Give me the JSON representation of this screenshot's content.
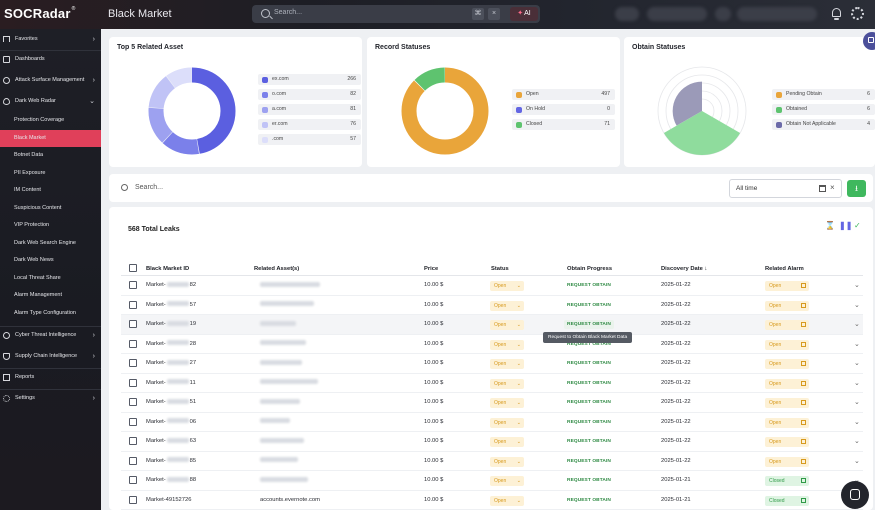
{
  "header": {
    "logo": "SOCRadar",
    "page_title": "Black Market",
    "search_placeholder": "Search...",
    "kbd_icon": "⌘",
    "clear_icon": "×",
    "ai_label": "AI"
  },
  "sidebar": {
    "items": [
      {
        "label": "Favorites",
        "arrow": "›"
      },
      {
        "label": "Dashboards",
        "arrow": ""
      },
      {
        "label": "Attack Surface Management",
        "arrow": "›"
      },
      {
        "label": "Dark Web Radar",
        "arrow": "⌄"
      },
      {
        "label": "Protection Coverage",
        "arrow": ""
      },
      {
        "label": "Black Market",
        "arrow": ""
      },
      {
        "label": "Botnet Data",
        "arrow": ""
      },
      {
        "label": "PII Exposure",
        "arrow": ""
      },
      {
        "label": "IM Content",
        "arrow": ""
      },
      {
        "label": "Suspicious Content",
        "arrow": ""
      },
      {
        "label": "VIP Protection",
        "arrow": ""
      },
      {
        "label": "Dark Web Search Engine",
        "arrow": ""
      },
      {
        "label": "Dark Web News",
        "arrow": ""
      },
      {
        "label": "Local Threat Share",
        "arrow": ""
      },
      {
        "label": "Alarm Management",
        "arrow": ""
      },
      {
        "label": "Alarm Type Configuration",
        "arrow": ""
      },
      {
        "label": "Cyber Threat Intelligence",
        "arrow": "›"
      },
      {
        "label": "Supply Chain Intelligence",
        "arrow": "›"
      },
      {
        "label": "Reports",
        "arrow": ""
      },
      {
        "label": "Settings",
        "arrow": "›"
      }
    ]
  },
  "cards": {
    "top5": {
      "title": "Top 5 Related Asset",
      "items": [
        {
          "label": "ex.com",
          "value": "266",
          "color": "#5b5fe0"
        },
        {
          "label": "o.com",
          "value": "82",
          "color": "#7b80ea"
        },
        {
          "label": "a.com",
          "value": "81",
          "color": "#9da1f0"
        },
        {
          "label": "er.com",
          "value": "76",
          "color": "#c0c3f6"
        },
        {
          "label": ".com",
          "value": "57",
          "color": "#dcdefa"
        }
      ]
    },
    "record": {
      "title": "Record Statuses",
      "items": [
        {
          "label": "Open",
          "value": "497",
          "color": "#e9a53a"
        },
        {
          "label": "On Hold",
          "value": "0",
          "color": "#6366e3"
        },
        {
          "label": "Closed",
          "value": "71",
          "color": "#5ec36f"
        }
      ]
    },
    "obtain": {
      "title": "Obtain Statuses",
      "items": [
        {
          "label": "Pending Obtain",
          "value": "6",
          "color": "#e9a53a"
        },
        {
          "label": "Obtained",
          "value": "6",
          "color": "#5ec36f"
        },
        {
          "label": "Obtain Not Applicable",
          "value": "4",
          "color": "#6b6aa8"
        }
      ]
    }
  },
  "filter": {
    "search_placeholder": "Search...",
    "date_filter": "All time"
  },
  "table": {
    "total": "568 Total Leaks",
    "headers": {
      "id": "Black Market ID",
      "asset": "Related Asset(s)",
      "price": "Price",
      "status": "Status",
      "progress": "Obtain Progress",
      "date": "Discovery Date",
      "alarm": "Related Alarm"
    },
    "sort_indicator": "↓",
    "tooltip": "Request to Obtain Black Market Data",
    "rows": [
      {
        "id_a": "Market-",
        "id_b": "82",
        "price": "10.00 $",
        "status": "Open",
        "progress": "REQUEST OBTAIN",
        "date": "2025-01-22",
        "alarm": "Open",
        "asset": ""
      },
      {
        "id_a": "Market-",
        "id_b": "57",
        "price": "10.00 $",
        "status": "Open",
        "progress": "REQUEST OBTAIN",
        "date": "2025-01-22",
        "alarm": "Open",
        "asset": ""
      },
      {
        "id_a": "Market-",
        "id_b": "19",
        "price": "10.00 $",
        "status": "Open",
        "progress": "REQUEST OBTAIN",
        "date": "2025-01-22",
        "alarm": "Open",
        "asset": ""
      },
      {
        "id_a": "Market-",
        "id_b": "28",
        "price": "10.00 $",
        "status": "Open",
        "progress": "REQUEST OBTAIN",
        "date": "2025-01-22",
        "alarm": "Open",
        "asset": ""
      },
      {
        "id_a": "Market-",
        "id_b": "27",
        "price": "10.00 $",
        "status": "Open",
        "progress": "REQUEST OBTAIN",
        "date": "2025-01-22",
        "alarm": "Open",
        "asset": ""
      },
      {
        "id_a": "Market-",
        "id_b": "11",
        "price": "10.00 $",
        "status": "Open",
        "progress": "REQUEST OBTAIN",
        "date": "2025-01-22",
        "alarm": "Open",
        "asset": ""
      },
      {
        "id_a": "Market-",
        "id_b": "51",
        "price": "10.00 $",
        "status": "Open",
        "progress": "REQUEST OBTAIN",
        "date": "2025-01-22",
        "alarm": "Open",
        "asset": ""
      },
      {
        "id_a": "Market-",
        "id_b": "06",
        "price": "10.00 $",
        "status": "Open",
        "progress": "REQUEST OBTAIN",
        "date": "2025-01-22",
        "alarm": "Open",
        "asset": ""
      },
      {
        "id_a": "Market-",
        "id_b": "63",
        "price": "10.00 $",
        "status": "Open",
        "progress": "REQUEST OBTAIN",
        "date": "2025-01-22",
        "alarm": "Open",
        "asset": ""
      },
      {
        "id_a": "Market-",
        "id_b": "85",
        "price": "10.00 $",
        "status": "Open",
        "progress": "REQUEST OBTAIN",
        "date": "2025-01-22",
        "alarm": "Open",
        "asset": ""
      },
      {
        "id_a": "Market-",
        "id_b": "88",
        "price": "10.00 $",
        "status": "Open",
        "progress": "REQUEST OBTAIN",
        "date": "2025-01-21",
        "alarm": "Closed",
        "asset": ""
      },
      {
        "id_a": "Market-49152726",
        "id_b": "",
        "price": "10.00 $",
        "status": "Open",
        "progress": "REQUEST OBTAIN",
        "date": "2025-01-21",
        "alarm": "Closed",
        "asset": "accounts.evernote.com"
      }
    ]
  }
}
